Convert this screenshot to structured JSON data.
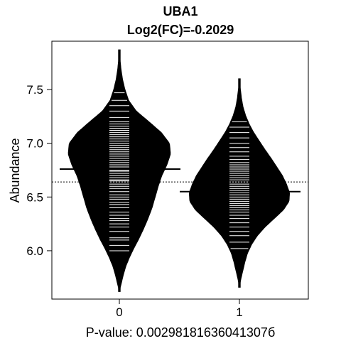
{
  "chart_data": {
    "type": "beanplot",
    "title": "UBA1",
    "subtitle": "Log2(FC)=-0.2029",
    "xlabel": "P-value: 0.00298181636041307б",
    "ylabel": "Abundance",
    "ylim": [
      5.55,
      7.95
    ],
    "yticks": [
      6.0,
      6.5,
      7.0,
      7.5
    ],
    "y_tick_labels": [
      "6.0",
      "6.5",
      "7.0",
      "7.5"
    ],
    "categories": [
      "0",
      "1"
    ],
    "overall_mean": 6.64,
    "grid": false,
    "groups": [
      {
        "category": "0",
        "mean": 6.76,
        "range": [
          5.62,
          7.87
        ],
        "density": [
          [
            5.62,
            0.0
          ],
          [
            5.7,
            0.04
          ],
          [
            5.78,
            0.08
          ],
          [
            5.86,
            0.13
          ],
          [
            5.94,
            0.2
          ],
          [
            6.02,
            0.28
          ],
          [
            6.1,
            0.37
          ],
          [
            6.2,
            0.47
          ],
          [
            6.3,
            0.56
          ],
          [
            6.4,
            0.64
          ],
          [
            6.5,
            0.7
          ],
          [
            6.6,
            0.76
          ],
          [
            6.7,
            0.83
          ],
          [
            6.8,
            0.93
          ],
          [
            6.9,
            1.0
          ],
          [
            7.0,
            0.98
          ],
          [
            7.1,
            0.82
          ],
          [
            7.2,
            0.58
          ],
          [
            7.3,
            0.33
          ],
          [
            7.4,
            0.18
          ],
          [
            7.5,
            0.11
          ],
          [
            7.6,
            0.06
          ],
          [
            7.7,
            0.03
          ],
          [
            7.8,
            0.01
          ],
          [
            7.87,
            0.0
          ]
        ],
        "values": [
          6.0,
          6.05,
          6.1,
          6.12,
          6.18,
          6.22,
          6.25,
          6.28,
          6.3,
          6.33,
          6.36,
          6.4,
          6.43,
          6.45,
          6.48,
          6.5,
          6.52,
          6.55,
          6.58,
          6.6,
          6.62,
          6.64,
          6.65,
          6.66,
          6.68,
          6.7,
          6.72,
          6.74,
          6.75,
          6.76,
          6.78,
          6.8,
          6.82,
          6.84,
          6.86,
          6.88,
          6.9,
          6.92,
          6.94,
          6.96,
          6.98,
          7.0,
          7.02,
          7.04,
          7.06,
          7.08,
          7.1,
          7.12,
          7.14,
          7.16,
          7.18,
          7.2,
          7.24,
          7.3,
          7.35,
          7.4,
          7.47
        ]
      },
      {
        "category": "1",
        "mean": 6.55,
        "range": [
          5.66,
          7.6
        ],
        "density": [
          [
            5.66,
            0.0
          ],
          [
            5.74,
            0.03
          ],
          [
            5.82,
            0.07
          ],
          [
            5.9,
            0.11
          ],
          [
            5.98,
            0.16
          ],
          [
            6.06,
            0.24
          ],
          [
            6.14,
            0.35
          ],
          [
            6.22,
            0.5
          ],
          [
            6.3,
            0.68
          ],
          [
            6.38,
            0.86
          ],
          [
            6.46,
            0.97
          ],
          [
            6.54,
            0.98
          ],
          [
            6.62,
            0.92
          ],
          [
            6.7,
            0.84
          ],
          [
            6.78,
            0.73
          ],
          [
            6.86,
            0.62
          ],
          [
            6.94,
            0.5
          ],
          [
            7.02,
            0.39
          ],
          [
            7.1,
            0.28
          ],
          [
            7.18,
            0.19
          ],
          [
            7.26,
            0.12
          ],
          [
            7.34,
            0.07
          ],
          [
            7.42,
            0.04
          ],
          [
            7.5,
            0.02
          ],
          [
            7.6,
            0.0
          ]
        ],
        "values": [
          6.02,
          6.08,
          6.14,
          6.18,
          6.22,
          6.26,
          6.3,
          6.33,
          6.36,
          6.38,
          6.4,
          6.42,
          6.44,
          6.46,
          6.48,
          6.5,
          6.52,
          6.54,
          6.56,
          6.58,
          6.6,
          6.62,
          6.64,
          6.66,
          6.68,
          6.7,
          6.72,
          6.74,
          6.76,
          6.78,
          6.8,
          6.82,
          6.85,
          6.88,
          6.92,
          6.96,
          7.0,
          7.05,
          7.1,
          7.15,
          7.2
        ]
      }
    ]
  }
}
